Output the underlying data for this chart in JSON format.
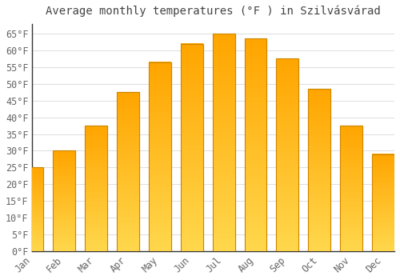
{
  "title": "Average monthly temperatures (°F ) in Szilvásvárad",
  "months": [
    "Jan",
    "Feb",
    "Mar",
    "Apr",
    "May",
    "Jun",
    "Jul",
    "Aug",
    "Sep",
    "Oct",
    "Nov",
    "Dec"
  ],
  "values": [
    25,
    30,
    37.5,
    47.5,
    56.5,
    62,
    65,
    63.5,
    57.5,
    48.5,
    37.5,
    29
  ],
  "bar_color_bottom": "#FFD84D",
  "bar_color_top": "#FFA500",
  "bar_edge_color": "#CC8800",
  "background_color": "#ffffff",
  "grid_color": "#dddddd",
  "text_color": "#444444",
  "tick_label_color": "#666666",
  "spine_color": "#333333",
  "ylim": [
    0,
    68
  ],
  "yticks": [
    0,
    5,
    10,
    15,
    20,
    25,
    30,
    35,
    40,
    45,
    50,
    55,
    60,
    65
  ],
  "title_fontsize": 10,
  "tick_fontsize": 8.5
}
